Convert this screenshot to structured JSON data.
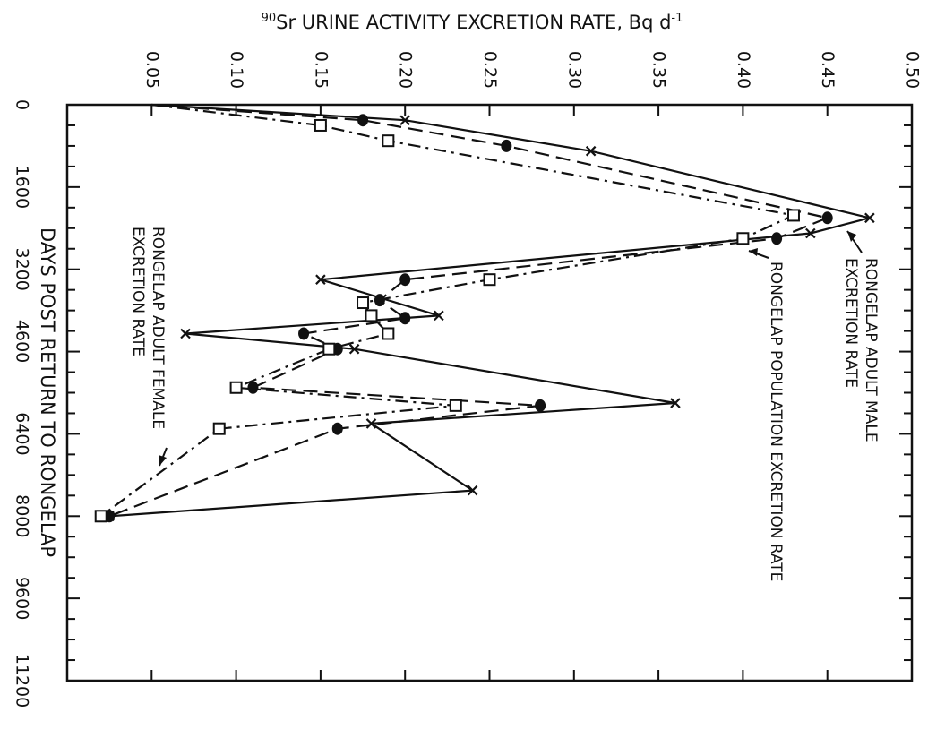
{
  "chart_data": {
    "type": "line",
    "title": "",
    "x_axis": {
      "label": "DAYS POST RETURN TO RONGELAP",
      "range": [
        0,
        11200
      ],
      "ticks": [
        0,
        1600,
        3200,
        4600,
        6400,
        8000,
        9600,
        11200
      ],
      "tick_labels": [
        "0",
        "1600",
        "3200",
        "4600",
        "6400",
        "8000",
        "9600",
        "11200"
      ]
    },
    "y_axis": {
      "label": "90Sr URINE ACTIVITY EXCRETION RATE, Bq d-1",
      "label_parts": {
        "superscript": "90",
        "main": "Sr URINE ACTIVITY EXCRETION RATE, Bq d",
        "superscript_end": "-1"
      },
      "range": [
        0,
        0.5
      ],
      "ticks": [
        0.05,
        0.1,
        0.15,
        0.2,
        0.25,
        0.3,
        0.35,
        0.4,
        0.45,
        0.5
      ],
      "tick_labels": [
        "0.05",
        "0.10",
        "0.15",
        "0.20",
        "0.25",
        "0.30",
        "0.35",
        "0.40",
        "0.45",
        "0.50"
      ]
    },
    "grid": false,
    "legend": "none",
    "series": [
      {
        "name": "RONGELAP ADULT MALE EXCRETION RATE",
        "line_style": "solid",
        "marker": "x",
        "points": [
          {
            "x": 0,
            "y": 0.05
          },
          {
            "x": 300,
            "y": 0.2
          },
          {
            "x": 900,
            "y": 0.31
          },
          {
            "x": 2200,
            "y": 0.475
          },
          {
            "x": 2500,
            "y": 0.44
          },
          {
            "x": 3400,
            "y": 0.15
          },
          {
            "x": 4100,
            "y": 0.22
          },
          {
            "x": 4450,
            "y": 0.07
          },
          {
            "x": 4750,
            "y": 0.17
          },
          {
            "x": 5800,
            "y": 0.36
          },
          {
            "x": 6200,
            "y": 0.18
          },
          {
            "x": 7500,
            "y": 0.24
          },
          {
            "x": 8000,
            "y": 0.025
          }
        ]
      },
      {
        "name": "RONGELAP POPULATION EXCRETION RATE",
        "line_style": "dashed",
        "marker": "filled-circle",
        "points": [
          {
            "x": 0,
            "y": 0.05
          },
          {
            "x": 300,
            "y": 0.175
          },
          {
            "x": 800,
            "y": 0.26
          },
          {
            "x": 2200,
            "y": 0.45
          },
          {
            "x": 2600,
            "y": 0.42
          },
          {
            "x": 3400,
            "y": 0.2
          },
          {
            "x": 3800,
            "y": 0.185
          },
          {
            "x": 4150,
            "y": 0.2
          },
          {
            "x": 4450,
            "y": 0.14
          },
          {
            "x": 4750,
            "y": 0.16
          },
          {
            "x": 5500,
            "y": 0.11
          },
          {
            "x": 5850,
            "y": 0.28
          },
          {
            "x": 6300,
            "y": 0.16
          },
          {
            "x": 8000,
            "y": 0.025
          }
        ]
      },
      {
        "name": "RONGELAP ADULT FEMALE EXCRETION RATE",
        "line_style": "dash-dot",
        "marker": "open-square",
        "points": [
          {
            "x": 0,
            "y": 0.05
          },
          {
            "x": 400,
            "y": 0.15
          },
          {
            "x": 700,
            "y": 0.19
          },
          {
            "x": 2150,
            "y": 0.43
          },
          {
            "x": 2600,
            "y": 0.4
          },
          {
            "x": 3400,
            "y": 0.25
          },
          {
            "x": 3850,
            "y": 0.175
          },
          {
            "x": 4100,
            "y": 0.18
          },
          {
            "x": 4450,
            "y": 0.19
          },
          {
            "x": 4750,
            "y": 0.155
          },
          {
            "x": 5500,
            "y": 0.1
          },
          {
            "x": 5850,
            "y": 0.23
          },
          {
            "x": 6300,
            "y": 0.09
          },
          {
            "x": 8000,
            "y": 0.02
          }
        ]
      }
    ],
    "annotations": [
      {
        "lines": [
          "RONGELAP ADULT MALE",
          "EXCRETION RATE"
        ],
        "series": "RONGELAP ADULT MALE EXCRETION RATE"
      },
      {
        "lines": [
          "RONGELAP POPULATION EXCRETION RATE"
        ],
        "series": "RONGELAP POPULATION EXCRETION RATE"
      },
      {
        "lines": [
          "RONGELAP ADULT FEMALE",
          "EXCRETION RATE"
        ],
        "series": "RONGELAP ADULT FEMALE EXCRETION RATE"
      }
    ]
  }
}
